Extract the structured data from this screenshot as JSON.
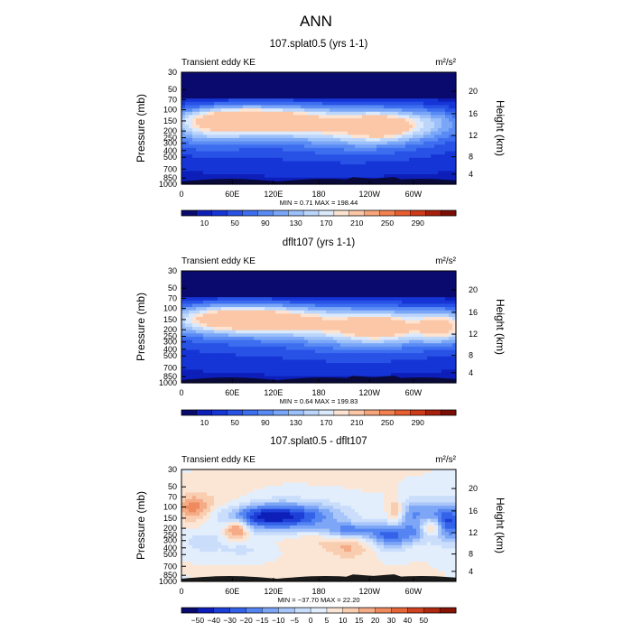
{
  "page_title": "ANN",
  "palettes": {
    "abs": [
      "#0a0a6e",
      "#0d1fb8",
      "#1535d6",
      "#2852e6",
      "#3d6ef0",
      "#5a8bf4",
      "#7aa6f7",
      "#9cc0f9",
      "#bcd6fb",
      "#dbe9fc",
      "#fde4d2",
      "#fbc7a7",
      "#f7a47a",
      "#f2814f",
      "#e85e30",
      "#cf3a18",
      "#a8200c",
      "#7a0e04"
    ],
    "diff": [
      "#0a0a6e",
      "#0d1fb8",
      "#1d3fd8",
      "#3463ea",
      "#5585f2",
      "#7ea6f6",
      "#a8c6f9",
      "#cadefc",
      "#e3eefd",
      "#fbe6d6",
      "#f9cdb0",
      "#f5ac86",
      "#ef8a5e",
      "#e6663a",
      "#d04320",
      "#b02a10",
      "#861404"
    ]
  },
  "chart_data": [
    {
      "type": "heatmap",
      "title": "107.splat0.5 (yrs 1-1)",
      "left_label": "Transient eddy KE",
      "units": "m²/s²",
      "ylabel": "Pressure (mb)",
      "ylabel_right": "Height (km)",
      "y_ticks": [
        "30",
        "50",
        "70",
        "100",
        "150",
        "200",
        "250",
        "300",
        "400",
        "500",
        "700",
        "850",
        "1000"
      ],
      "height_ticks": [
        "20",
        "16",
        "12",
        "8",
        "4"
      ],
      "x_ticks": [
        "0",
        "60E",
        "120E",
        "180",
        "120W",
        "60W"
      ],
      "min_max": "MIN =     0.71   MAX =  198.44",
      "colorbar_labels": [
        "10",
        "50",
        "90",
        "130",
        "170",
        "210",
        "250",
        "290"
      ],
      "palette": "abs",
      "min": 0.71,
      "max": 198.44,
      "blobs": "a"
    },
    {
      "type": "heatmap",
      "title": "dflt107 (yrs 1-1)",
      "left_label": "Transient eddy KE",
      "units": "m²/s²",
      "ylabel": "Pressure (mb)",
      "ylabel_right": "Height (km)",
      "y_ticks": [
        "30",
        "50",
        "70",
        "100",
        "150",
        "200",
        "250",
        "300",
        "400",
        "500",
        "700",
        "850",
        "1000"
      ],
      "height_ticks": [
        "20",
        "16",
        "12",
        "8",
        "4"
      ],
      "x_ticks": [
        "0",
        "60E",
        "120E",
        "180",
        "120W",
        "60W"
      ],
      "min_max": "MIN =     0.64   MAX =  199.83",
      "colorbar_labels": [
        "10",
        "50",
        "90",
        "130",
        "170",
        "210",
        "250",
        "290"
      ],
      "palette": "abs",
      "min": 0.64,
      "max": 199.83,
      "blobs": "b"
    },
    {
      "type": "heatmap",
      "title": "107.splat0.5 - dflt107",
      "left_label": "Transient eddy KE",
      "units": "m²/s²",
      "ylabel": "Pressure (mb)",
      "ylabel_right": "Height (km)",
      "y_ticks": [
        "30",
        "50",
        "70",
        "100",
        "150",
        "200",
        "250",
        "300",
        "400",
        "500",
        "700",
        "850",
        "1000"
      ],
      "height_ticks": [
        "20",
        "16",
        "12",
        "8",
        "4"
      ],
      "x_ticks": [
        "0",
        "60E",
        "120E",
        "180",
        "120W",
        "60W"
      ],
      "min_max": "MIN =  −37.70   MAX =   22.20",
      "colorbar_labels": [
        "−50",
        "−40",
        "−30",
        "−20",
        "−15",
        "−10",
        "−5",
        "0",
        "5",
        "10",
        "15",
        "20",
        "30",
        "40",
        "50"
      ],
      "palette": "diff",
      "min": -37.7,
      "max": 22.2,
      "blobs": "c"
    }
  ]
}
